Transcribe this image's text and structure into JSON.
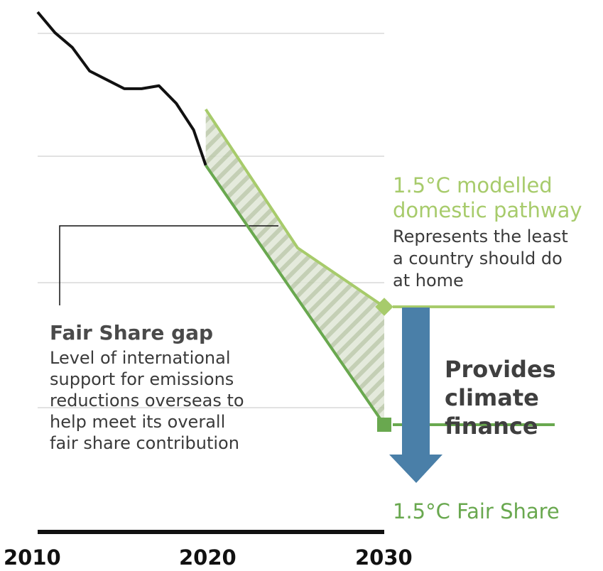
{
  "chart_data": {
    "type": "line",
    "xlim": [
      2010,
      2030
    ],
    "x_ticks": [
      "2010",
      "2020",
      "2030"
    ],
    "grid": true,
    "ylim": [
      0,
      100
    ],
    "series": [
      {
        "key": "historical",
        "color": "#111111",
        "x": [
          2010,
          2011,
          2012,
          2013,
          2014,
          2015,
          2016,
          2017,
          2018,
          2019,
          2019.7
        ],
        "y": [
          100,
          93,
          88,
          80,
          77,
          74,
          74,
          75,
          69,
          60,
          48
        ]
      },
      {
        "name": "1.5°C modelled domestic pathway",
        "key": "modelled",
        "color": "#a7cb6b",
        "x": [
          2019.7,
          2025,
          2030
        ],
        "y": [
          67,
          20,
          0
        ]
      },
      {
        "name": "1.5°C Fair Share",
        "key": "fair_share",
        "color": "#69a84f",
        "x": [
          2019.7,
          2030
        ],
        "y": [
          48,
          -40
        ]
      }
    ]
  },
  "labels": {
    "pathway_title_line1": "1.5°C modelled",
    "pathway_title_line2": "domestic pathway",
    "pathway_desc_line1": "Represents the least",
    "pathway_desc_line2": "a country should do",
    "pathway_desc_line3": "at home",
    "gap_title": "Fair Share gap",
    "gap_desc_line1": "Level of international",
    "gap_desc_line2": "support for emissions",
    "gap_desc_line3": "reductions overseas to",
    "gap_desc_line4": "help meet its overall",
    "gap_desc_line5": "fair share contribution",
    "arrow_line1": "Provides",
    "arrow_line2": "climate",
    "arrow_line3": "finance",
    "fair_share_label": "1.5°C Fair Share"
  },
  "colors": {
    "modelled": "#a7cb6b",
    "fair_share": "#69a84f",
    "arrow": "#4a7fa8",
    "gap_fill": "#dfe6d6",
    "gap_stripe": "#b9c7a8",
    "grid": "#d9d9d9",
    "axis": "#111111"
  }
}
